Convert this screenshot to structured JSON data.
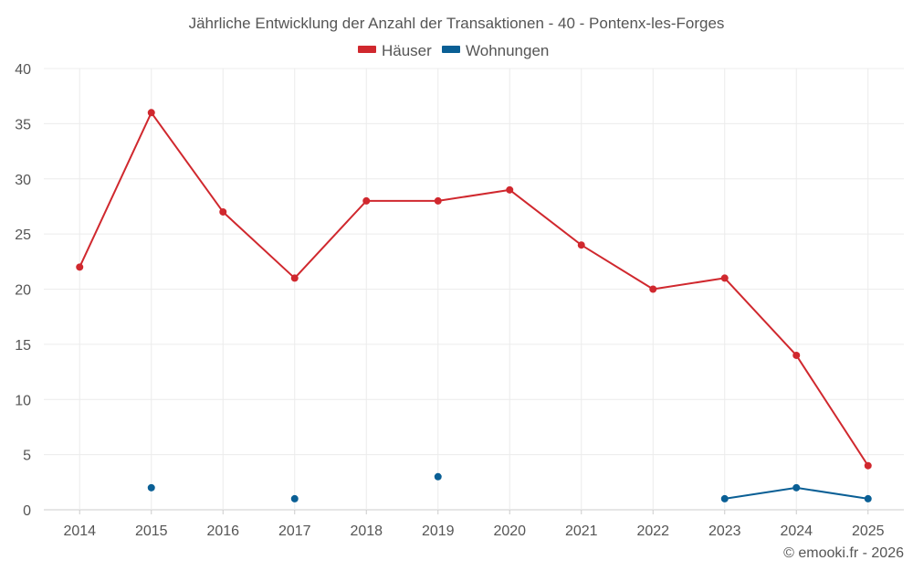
{
  "chart_data": {
    "type": "line",
    "title": "Jährliche Entwicklung der Anzahl der Transaktionen - 40 - Pontenx-les-Forges",
    "categories": [
      "2014",
      "2015",
      "2016",
      "2017",
      "2018",
      "2019",
      "2020",
      "2021",
      "2022",
      "2023",
      "2024",
      "2025"
    ],
    "ylim": [
      0,
      40
    ],
    "yticks": [
      0,
      5,
      10,
      15,
      20,
      25,
      30,
      35,
      40
    ],
    "grid": true,
    "legend_position": "top-center",
    "series": [
      {
        "name": "Häuser",
        "color": "#d0282e",
        "values": [
          22,
          36,
          27,
          21,
          28,
          28,
          29,
          24,
          20,
          21,
          14,
          4
        ]
      },
      {
        "name": "Wohnungen",
        "color": "#0a5f95",
        "values": [
          null,
          2,
          null,
          1,
          null,
          3,
          null,
          null,
          null,
          1,
          2,
          1
        ]
      }
    ]
  },
  "copyright": "© emooki.fr - 2026"
}
